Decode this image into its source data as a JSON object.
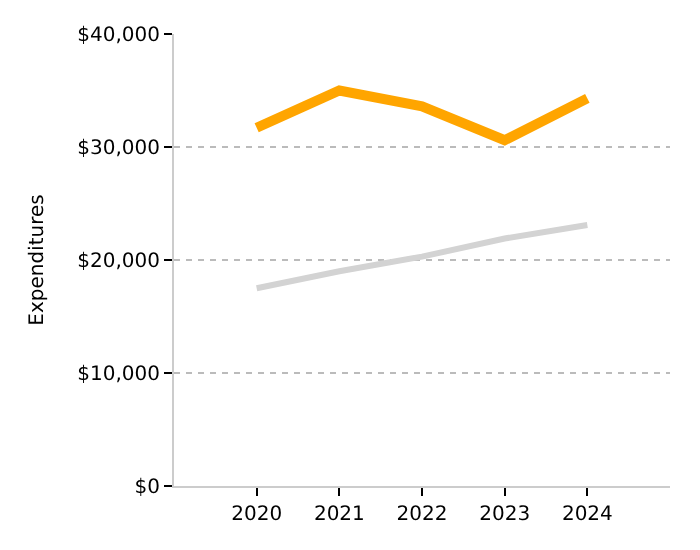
{
  "chart_data": {
    "type": "line",
    "ylabel": "Expenditures",
    "x": [
      2020,
      2021,
      2022,
      2023,
      2024
    ],
    "series": [
      {
        "color": "#ffa500",
        "values": [
          31700,
          35000,
          33600,
          30600,
          34300
        ]
      },
      {
        "color": "#d3d3d3",
        "values": [
          17500,
          19000,
          20300,
          21900,
          23100
        ]
      }
    ],
    "xlim": [
      2019,
      2025
    ],
    "xticks": [
      2020,
      2021,
      2022,
      2023,
      2024
    ],
    "ylim": [
      0,
      40000
    ],
    "yticks": [
      {
        "value": 0,
        "label": "$0"
      },
      {
        "value": 10000,
        "label": "$10,000"
      },
      {
        "value": 20000,
        "label": "$20,000"
      },
      {
        "value": 30000,
        "label": "$30,000"
      },
      {
        "value": 40000,
        "label": "$40,000"
      }
    ],
    "grid": "y",
    "legend": false,
    "marker": "none",
    "line_style": "solid"
  }
}
